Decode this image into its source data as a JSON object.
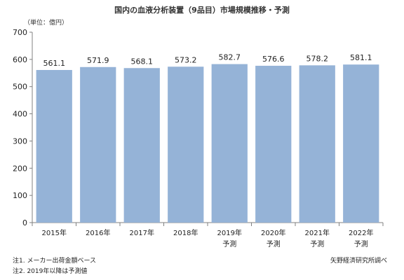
{
  "title": "国内の血液分析装置（9品目）市場規模推移・予測",
  "unit_label": "（単位：億円）",
  "notes": [
    "注1. メーカー出荷金額ベース",
    "注2. 2019年以降は予測値"
  ],
  "source": "矢野経済研究所調べ",
  "colors": {
    "bar": "#95b3d7",
    "grid": "#d0d0d0",
    "axis": "#808080"
  },
  "chart_data": {
    "type": "bar",
    "title": "国内の血液分析装置（9品目）市場規模推移・予測",
    "ylabel": "（単位：億円）",
    "ylim": [
      0,
      700
    ],
    "yticks": [
      0,
      100,
      200,
      300,
      400,
      500,
      600,
      700
    ],
    "grid": false,
    "categories": [
      "2015年",
      "2016年",
      "2017年",
      "2018年",
      "2019年",
      "2020年",
      "2021年",
      "2022年"
    ],
    "category_sublabels": [
      "",
      "",
      "",
      "",
      "予測",
      "予測",
      "予測",
      "予測"
    ],
    "values": [
      561.1,
      571.9,
      568.1,
      573.2,
      582.7,
      576.6,
      578.2,
      581.1
    ],
    "value_labels": [
      "561.1",
      "571.9",
      "568.1",
      "573.2",
      "582.7",
      "576.6",
      "578.2",
      "581.1"
    ]
  }
}
